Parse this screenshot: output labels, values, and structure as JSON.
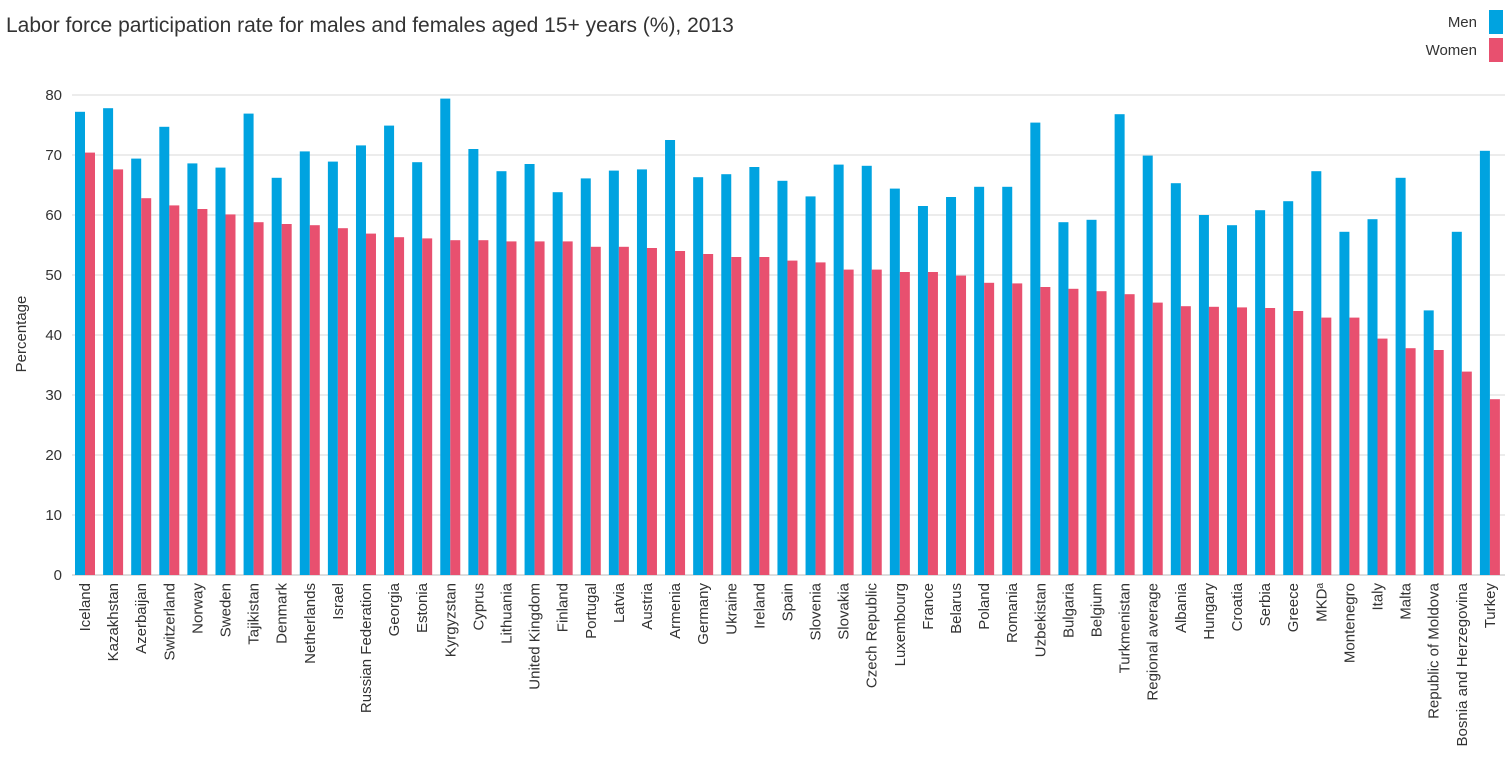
{
  "chart_data": {
    "type": "bar",
    "title": "Labor force participation rate for males and females aged 15+ years (%), 2013",
    "ylabel": "Percentage",
    "xlabel": "",
    "ylim": [
      0,
      80
    ],
    "yticks": [
      0,
      10,
      20,
      30,
      40,
      50,
      60,
      70,
      80
    ],
    "grid": true,
    "legend_position": "top-right",
    "categories": [
      "Iceland",
      "Kazakhstan",
      "Azerbaijan",
      "Switzerland",
      "Norway",
      "Sweden",
      "Tajikistan",
      "Denmark",
      "Netherlands",
      "Israel",
      "Russian Federation",
      "Georgia",
      "Estonia",
      "Kyrgyzstan",
      "Cyprus",
      "Lithuania",
      "United Kingdom",
      "Finland",
      "Portugal",
      "Latvia",
      "Austria",
      "Armenia",
      "Germany",
      "Ukraine",
      "Ireland",
      "Spain",
      "Slovenia",
      "Slovakia",
      "Czech Republic",
      "Luxembourg",
      "France",
      "Belarus",
      "Poland",
      "Romania",
      "Uzbekistan",
      "Bulgaria",
      "Belgium",
      "Turkmenistan",
      "Regional average",
      "Albania",
      "Hungary",
      "Croatia",
      "Serbia",
      "Greece",
      "MKDᵃ",
      "Montenegro",
      "Italy",
      "Malta",
      "Republic of Moldova",
      "Bosnia and Herzegovina",
      "Turkey"
    ],
    "series": [
      {
        "name": "Men",
        "color": "#00a3e0",
        "values": [
          77.2,
          77.8,
          69.4,
          74.7,
          68.6,
          67.9,
          76.9,
          66.2,
          70.6,
          68.9,
          71.6,
          74.9,
          68.8,
          79.4,
          71.0,
          67.3,
          68.5,
          63.8,
          66.1,
          67.4,
          67.6,
          72.5,
          66.3,
          66.8,
          68.0,
          65.7,
          63.1,
          68.4,
          68.2,
          64.4,
          61.5,
          63.0,
          64.7,
          64.7,
          75.4,
          58.8,
          59.2,
          76.8,
          69.9,
          65.3,
          60.0,
          58.3,
          60.8,
          62.3,
          67.3,
          57.2,
          59.3,
          66.2,
          44.1,
          57.2,
          70.7
        ]
      },
      {
        "name": "Women",
        "color": "#e8506f",
        "values": [
          70.4,
          67.6,
          62.8,
          61.6,
          61.0,
          60.1,
          58.8,
          58.5,
          58.3,
          57.8,
          56.9,
          56.3,
          56.1,
          55.8,
          55.8,
          55.6,
          55.6,
          55.6,
          54.7,
          54.7,
          54.5,
          54.0,
          53.5,
          53.0,
          53.0,
          52.4,
          52.1,
          50.9,
          50.9,
          50.5,
          50.5,
          49.9,
          48.7,
          48.6,
          48.0,
          47.7,
          47.3,
          46.8,
          45.4,
          44.8,
          44.7,
          44.6,
          44.5,
          44.0,
          42.9,
          42.9,
          39.4,
          37.8,
          37.5,
          33.9,
          29.3
        ]
      }
    ]
  }
}
